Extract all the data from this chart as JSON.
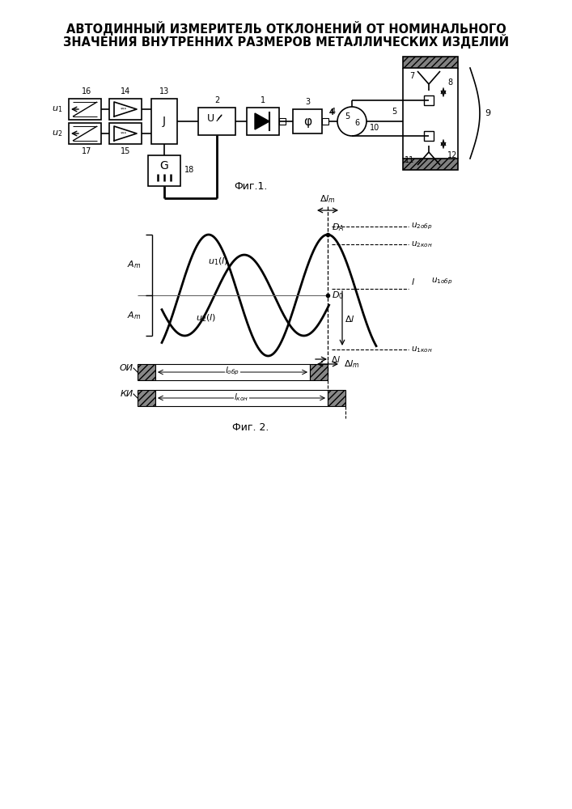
{
  "title_line1": "АВТОДИННЫЙ ИЗМЕРИТЕЛЬ ОТКЛОНЕНИЙ ОТ НОМИНАЛЬНОГО",
  "title_line2": "ЗНАЧЕНИЯ ВНУТРЕННИХ РАЗМЕРОВ МЕТАЛЛИЧЕСКИХ ИЗДЕЛИЙ",
  "fig1_caption": "Фиг.1.",
  "fig2_caption": "Фиг. 2.",
  "bg_color": "#ffffff",
  "line_color": "#000000"
}
